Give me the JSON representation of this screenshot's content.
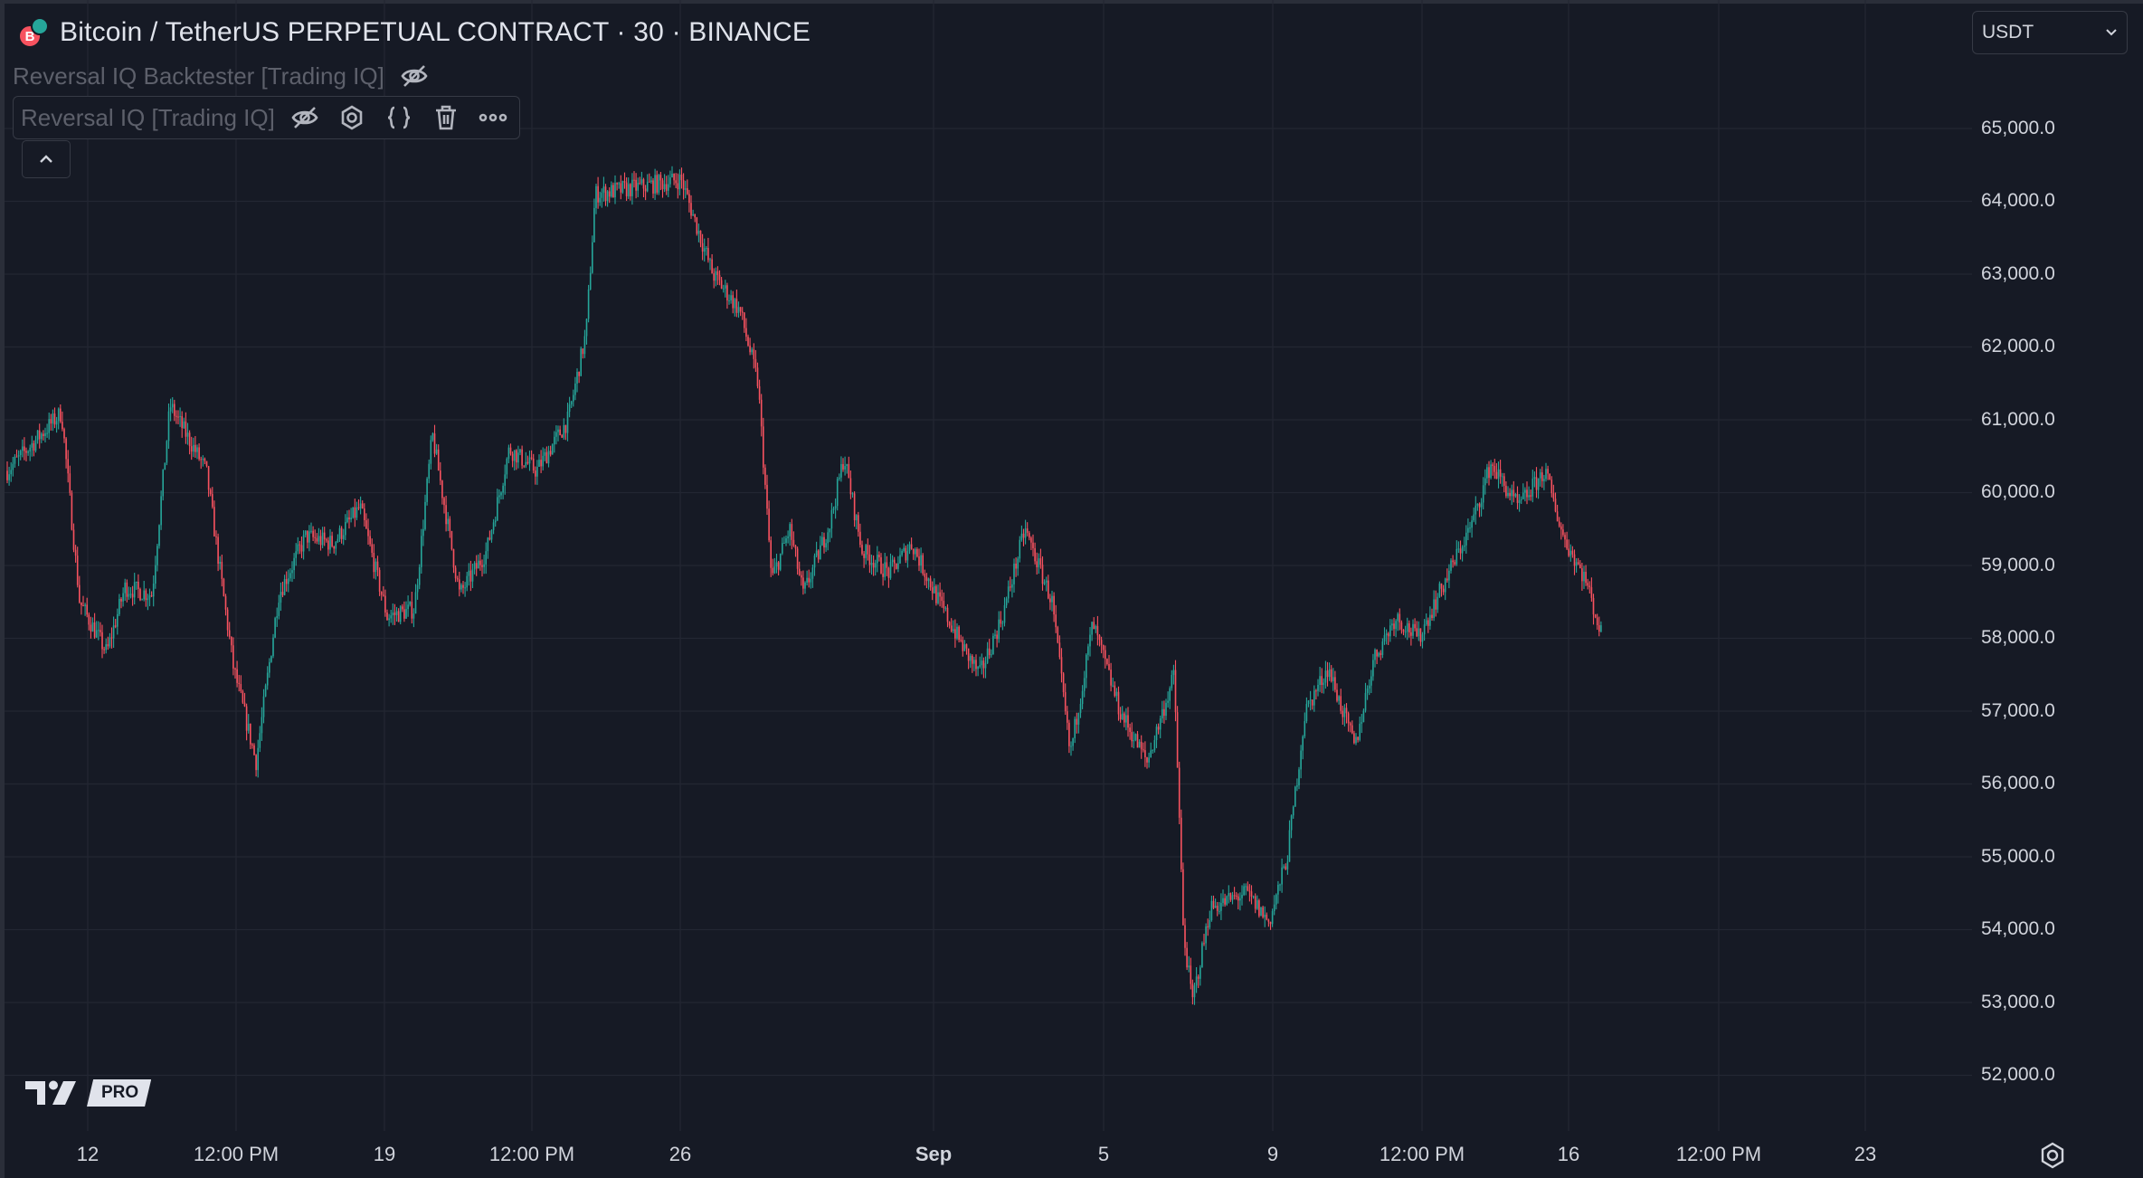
{
  "header": {
    "title": "Bitcoin / TetherUS PERPETUAL CONTRACT · 30 · BINANCE",
    "symbol_logo_letter": "B",
    "currency_select": "USDT"
  },
  "indicators": [
    {
      "label": "Reversal IQ Backtester [Trading IQ]",
      "hidden": true
    },
    {
      "label": "Reversal IQ [Trading IQ]",
      "hidden": true
    }
  ],
  "brand": {
    "pro_label": "PRO"
  },
  "colors": {
    "background": "#161a25",
    "up": "#26a69a",
    "down": "#f7525f",
    "grid": "#232733"
  },
  "icons": [
    "eye-off-icon",
    "settings-icon",
    "source-code-icon",
    "trash-icon",
    "more-icon",
    "chevron-up-icon",
    "chevron-down-icon",
    "gear-icon"
  ],
  "chart_data": {
    "type": "candlestick",
    "symbol": "BTCUSDT.P",
    "exchange": "BINANCE",
    "interval": "30",
    "price_axis": [
      "65,000.0",
      "64,000.0",
      "63,000.0",
      "62,000.0",
      "61,000.0",
      "60,000.0",
      "59,000.0",
      "58,000.0",
      "57,000.0",
      "56,000.0",
      "55,000.0",
      "54,000.0",
      "53,000.0",
      "52,000.0"
    ],
    "time_axis": [
      "12",
      "12:00 PM",
      "19",
      "12:00 PM",
      "26",
      "Sep",
      "5",
      "9",
      "12:00 PM",
      "16",
      "12:00 PM",
      "23"
    ],
    "ylim": [
      51700,
      65700
    ],
    "grid": true,
    "close_path": [
      [
        0,
        60300
      ],
      [
        60,
        61100
      ],
      [
        80,
        58500
      ],
      [
        110,
        57800
      ],
      [
        130,
        58700
      ],
      [
        160,
        58600
      ],
      [
        180,
        61200
      ],
      [
        220,
        60300
      ],
      [
        250,
        57600
      ],
      [
        275,
        56300
      ],
      [
        300,
        58600
      ],
      [
        330,
        59400
      ],
      [
        360,
        59300
      ],
      [
        390,
        59800
      ],
      [
        420,
        58300
      ],
      [
        450,
        58400
      ],
      [
        470,
        60800
      ],
      [
        500,
        58600
      ],
      [
        530,
        59200
      ],
      [
        555,
        60600
      ],
      [
        585,
        60300
      ],
      [
        620,
        61000
      ],
      [
        640,
        62200
      ],
      [
        650,
        64100
      ],
      [
        700,
        64200
      ],
      [
        745,
        64300
      ],
      [
        780,
        63000
      ],
      [
        810,
        62500
      ],
      [
        830,
        61500
      ],
      [
        845,
        58800
      ],
      [
        865,
        59500
      ],
      [
        880,
        58600
      ],
      [
        910,
        59600
      ],
      [
        925,
        60500
      ],
      [
        945,
        59200
      ],
      [
        975,
        58900
      ],
      [
        1000,
        59300
      ],
      [
        1030,
        58500
      ],
      [
        1060,
        57800
      ],
      [
        1075,
        57500
      ],
      [
        1100,
        58300
      ],
      [
        1125,
        59500
      ],
      [
        1155,
        58500
      ],
      [
        1175,
        56400
      ],
      [
        1200,
        58200
      ],
      [
        1230,
        57000
      ],
      [
        1260,
        56300
      ],
      [
        1290,
        57500
      ],
      [
        1300,
        54000
      ],
      [
        1310,
        53000
      ],
      [
        1330,
        54300
      ],
      [
        1370,
        54500
      ],
      [
        1395,
        54100
      ],
      [
        1415,
        55000
      ],
      [
        1435,
        57000
      ],
      [
        1460,
        57600
      ],
      [
        1490,
        56500
      ],
      [
        1510,
        57700
      ],
      [
        1535,
        58300
      ],
      [
        1560,
        58000
      ],
      [
        1620,
        59600
      ],
      [
        1640,
        60400
      ],
      [
        1670,
        59800
      ],
      [
        1700,
        60300
      ],
      [
        1720,
        59400
      ],
      [
        1745,
        58800
      ],
      [
        1770,
        57700
      ]
    ]
  }
}
